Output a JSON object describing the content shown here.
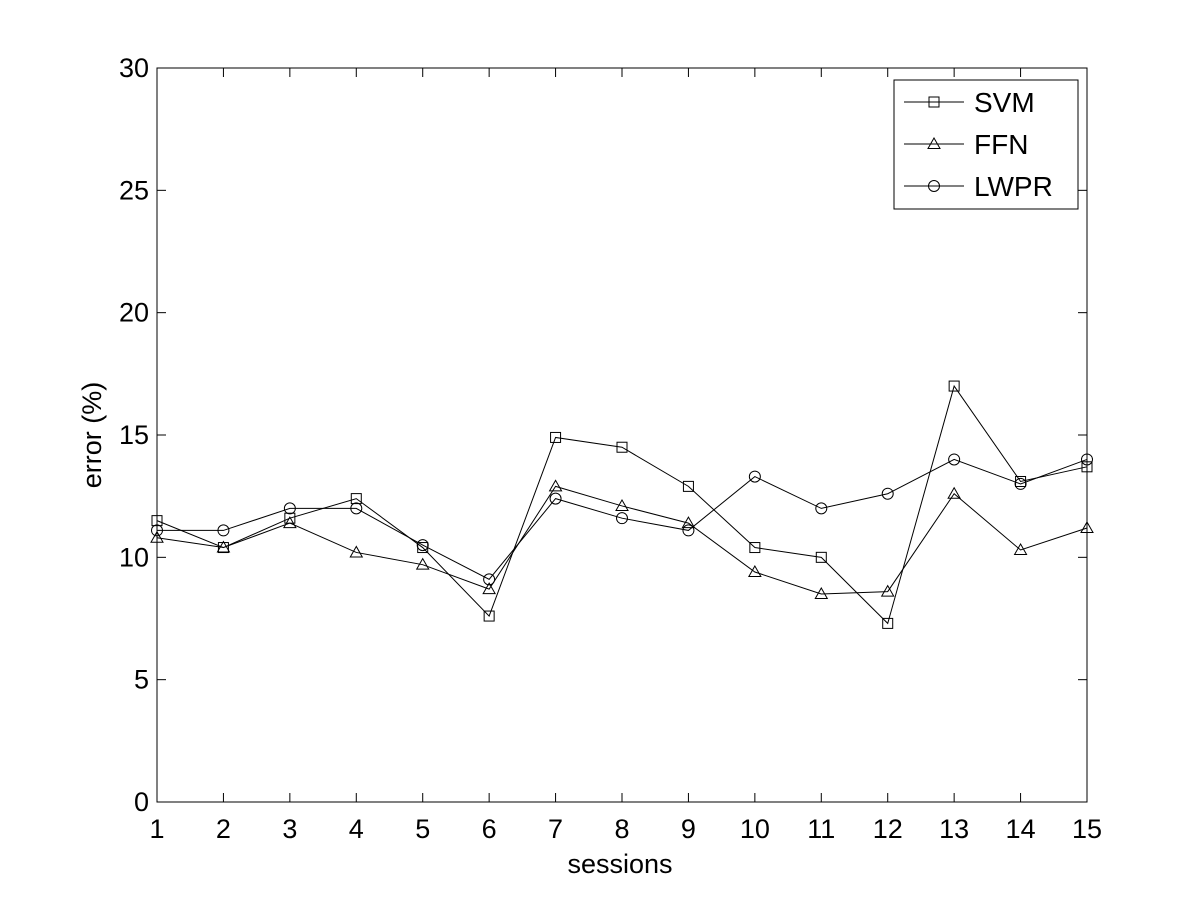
{
  "chart_data": {
    "type": "line",
    "xlabel": "sessions",
    "ylabel": "error (%)",
    "xlim": [
      1,
      15
    ],
    "ylim": [
      0,
      30
    ],
    "x_ticks": [
      "1",
      "2",
      "3",
      "4",
      "5",
      "6",
      "7",
      "8",
      "9",
      "10",
      "11",
      "12",
      "13",
      "14",
      "15"
    ],
    "y_ticks": [
      "0",
      "5",
      "10",
      "15",
      "20",
      "25",
      "30"
    ],
    "grid": false,
    "legend_position": "top-right",
    "x": [
      1,
      2,
      3,
      4,
      5,
      6,
      7,
      8,
      9,
      10,
      11,
      12,
      13,
      14,
      15
    ],
    "series": [
      {
        "name": "SVM",
        "marker": "square",
        "values": [
          11.5,
          10.4,
          11.6,
          12.4,
          10.4,
          7.6,
          14.9,
          14.5,
          12.9,
          10.4,
          10.0,
          7.3,
          17.0,
          13.1,
          13.7
        ]
      },
      {
        "name": "FFN",
        "marker": "triangle",
        "values": [
          10.8,
          10.4,
          11.4,
          10.2,
          9.7,
          8.7,
          12.9,
          12.1,
          11.4,
          9.4,
          8.5,
          8.6,
          12.6,
          10.3,
          11.2
        ]
      },
      {
        "name": "LWPR",
        "marker": "circle",
        "values": [
          11.1,
          11.1,
          12.0,
          12.0,
          10.5,
          9.1,
          12.4,
          11.6,
          11.1,
          13.3,
          12.0,
          12.6,
          14.0,
          13.0,
          14.0
        ]
      }
    ]
  }
}
